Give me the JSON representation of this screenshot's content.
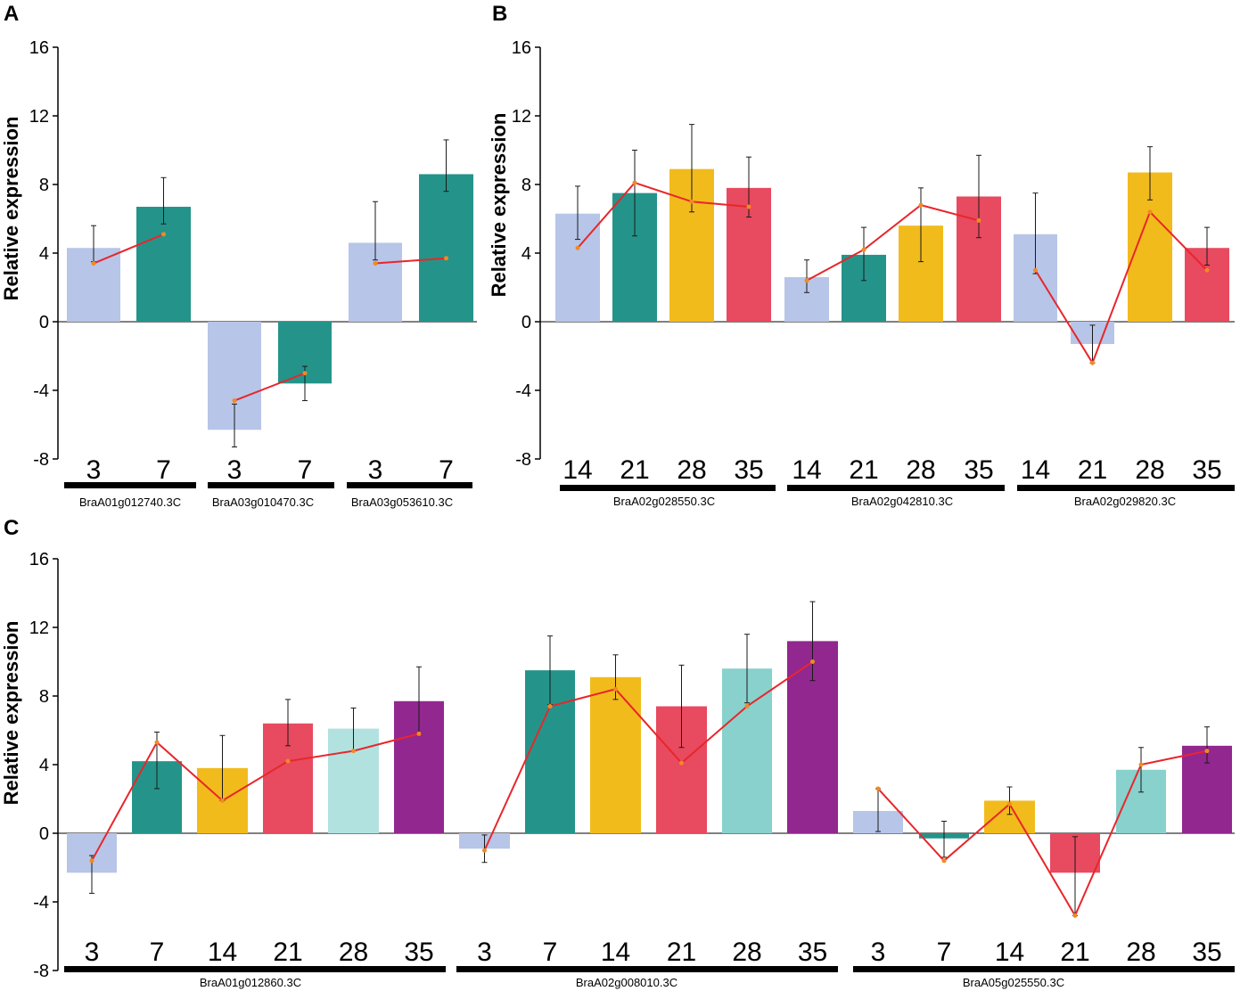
{
  "colors": {
    "d3": "#b7c5e8",
    "d7": "#24948a",
    "d14": "#f2bb1c",
    "d21": "#e84a5f",
    "d28": "#88d1cd",
    "d28_light": "#b1e2e0",
    "d35": "#92278f",
    "line": "#e8262b",
    "marker": "#f08a24",
    "axis": "#000000"
  },
  "chart_data": [
    {
      "id": "A",
      "panel_label": "A",
      "type": "bar",
      "ylabel": "Relative expression",
      "ylim": [
        -8,
        16
      ],
      "yticks": [
        16,
        12,
        8,
        4,
        0,
        -4,
        -8
      ],
      "groups": [
        {
          "gene": "BraA01g012740.3C",
          "bars": [
            {
              "day": "3",
              "value": 4.3,
              "err_hi": 5.6,
              "err_lo": 3.5,
              "line": 3.4,
              "color": "d3"
            },
            {
              "day": "7",
              "value": 6.7,
              "err_hi": 8.4,
              "err_lo": 5.7,
              "line": 5.1,
              "color": "d7"
            }
          ]
        },
        {
          "gene": "BraA03g010470.3C",
          "bars": [
            {
              "day": "3",
              "value": -6.3,
              "err_hi": -4.8,
              "err_lo": -7.3,
              "line": -4.6,
              "color": "d3"
            },
            {
              "day": "7",
              "value": -3.6,
              "err_hi": -2.6,
              "err_lo": -4.6,
              "line": -3.0,
              "color": "d7"
            }
          ]
        },
        {
          "gene": "BraA03g053610.3C",
          "bars": [
            {
              "day": "3",
              "value": 4.6,
              "err_hi": 7.0,
              "err_lo": 3.6,
              "line": 3.4,
              "color": "d3"
            },
            {
              "day": "7",
              "value": 8.6,
              "err_hi": 10.6,
              "err_lo": 7.6,
              "line": 3.7,
              "color": "d7"
            }
          ]
        }
      ]
    },
    {
      "id": "B",
      "panel_label": "B",
      "type": "bar",
      "ylabel": "Relative expression",
      "ylim": [
        -8,
        16
      ],
      "yticks": [
        16,
        12,
        8,
        4,
        0,
        -4,
        -8
      ],
      "groups": [
        {
          "gene": "BraA02g028550.3C",
          "bars": [
            {
              "day": "14",
              "value": 6.3,
              "err_hi": 7.9,
              "err_lo": 4.8,
              "line": 4.3,
              "color": "d3"
            },
            {
              "day": "21",
              "value": 7.5,
              "err_hi": 10.0,
              "err_lo": 5.0,
              "line": 8.1,
              "color": "d7"
            },
            {
              "day": "28",
              "value": 8.9,
              "err_hi": 11.5,
              "err_lo": 6.4,
              "line": 7.0,
              "color": "d14"
            },
            {
              "day": "35",
              "value": 7.8,
              "err_hi": 9.6,
              "err_lo": 6.1,
              "line": 6.7,
              "color": "d21"
            }
          ]
        },
        {
          "gene": "BraA02g042810.3C",
          "bars": [
            {
              "day": "14",
              "value": 2.6,
              "err_hi": 3.6,
              "err_lo": 1.7,
              "line": 2.4,
              "color": "d3"
            },
            {
              "day": "21",
              "value": 3.9,
              "err_hi": 5.5,
              "err_lo": 2.4,
              "line": 4.2,
              "color": "d7"
            },
            {
              "day": "28",
              "value": 5.6,
              "err_hi": 7.8,
              "err_lo": 3.5,
              "line": 6.8,
              "color": "d14"
            },
            {
              "day": "35",
              "value": 7.3,
              "err_hi": 9.7,
              "err_lo": 4.9,
              "line": 5.9,
              "color": "d21"
            }
          ]
        },
        {
          "gene": "BraA02g029820.3C",
          "bars": [
            {
              "day": "14",
              "value": 5.1,
              "err_hi": 7.5,
              "err_lo": 2.8,
              "line": 3.0,
              "color": "d3"
            },
            {
              "day": "21",
              "value": -1.3,
              "err_hi": -0.2,
              "err_lo": -2.4,
              "line": -2.4,
              "color": "d3"
            },
            {
              "day": "28",
              "value": 8.7,
              "err_hi": 10.2,
              "err_lo": 7.1,
              "line": 6.4,
              "color": "d14"
            },
            {
              "day": "35",
              "value": 4.3,
              "err_hi": 5.5,
              "err_lo": 3.3,
              "line": 3.0,
              "color": "d21"
            }
          ]
        }
      ]
    },
    {
      "id": "C",
      "panel_label": "C",
      "type": "bar",
      "ylabel": "Relative expression",
      "ylim": [
        -8,
        16
      ],
      "yticks": [
        16,
        12,
        8,
        4,
        0,
        -4,
        -8
      ],
      "groups": [
        {
          "gene": "BraA01g012860.3C",
          "bars": [
            {
              "day": "3",
              "value": -2.3,
              "err_hi": -1.3,
              "err_lo": -3.5,
              "line": -1.6,
              "color": "d3"
            },
            {
              "day": "7",
              "value": 4.2,
              "err_hi": 5.9,
              "err_lo": 2.6,
              "line": 5.3,
              "color": "d7"
            },
            {
              "day": "14",
              "value": 3.8,
              "err_hi": 5.7,
              "err_lo": 1.9,
              "line": 1.9,
              "color": "d14"
            },
            {
              "day": "21",
              "value": 6.4,
              "err_hi": 7.8,
              "err_lo": 5.1,
              "line": 4.2,
              "color": "d21"
            },
            {
              "day": "28",
              "value": 6.1,
              "err_hi": 7.3,
              "err_lo": 4.8,
              "line": 4.8,
              "color": "d28_light"
            },
            {
              "day": "35",
              "value": 7.7,
              "err_hi": 9.7,
              "err_lo": 5.8,
              "line": 5.8,
              "color": "d35"
            }
          ]
        },
        {
          "gene": "BraA02g008010.3C",
          "bars": [
            {
              "day": "3",
              "value": -0.9,
              "err_hi": -0.1,
              "err_lo": -1.7,
              "line": -1.0,
              "color": "d3"
            },
            {
              "day": "7",
              "value": 9.5,
              "err_hi": 11.5,
              "err_lo": 7.5,
              "line": 7.4,
              "color": "d7"
            },
            {
              "day": "14",
              "value": 9.1,
              "err_hi": 10.4,
              "err_lo": 7.8,
              "line": 8.4,
              "color": "d14"
            },
            {
              "day": "21",
              "value": 7.4,
              "err_hi": 9.8,
              "err_lo": 5.0,
              "line": 4.1,
              "color": "d21"
            },
            {
              "day": "28",
              "value": 9.6,
              "err_hi": 11.6,
              "err_lo": 7.6,
              "line": 7.4,
              "color": "d28"
            },
            {
              "day": "35",
              "value": 11.2,
              "err_hi": 13.5,
              "err_lo": 8.9,
              "line": 10.0,
              "color": "d35"
            }
          ]
        },
        {
          "gene": "BraA05g025550.3C",
          "bars": [
            {
              "day": "3",
              "value": 1.3,
              "err_hi": 2.6,
              "err_lo": 0.1,
              "line": 2.6,
              "color": "d3"
            },
            {
              "day": "7",
              "value": -0.3,
              "err_hi": 0.7,
              "err_lo": -1.4,
              "line": -1.6,
              "color": "d7"
            },
            {
              "day": "14",
              "value": 1.9,
              "err_hi": 2.7,
              "err_lo": 1.1,
              "line": 1.7,
              "color": "d14"
            },
            {
              "day": "21",
              "value": -2.3,
              "err_hi": -0.2,
              "err_lo": -4.8,
              "line": -4.8,
              "color": "d21"
            },
            {
              "day": "28",
              "value": 3.7,
              "err_hi": 5.0,
              "err_lo": 2.4,
              "line": 4.0,
              "color": "d28"
            },
            {
              "day": "35",
              "value": 5.1,
              "err_hi": 6.2,
              "err_lo": 4.1,
              "line": 4.8,
              "color": "d35"
            }
          ]
        }
      ]
    }
  ]
}
